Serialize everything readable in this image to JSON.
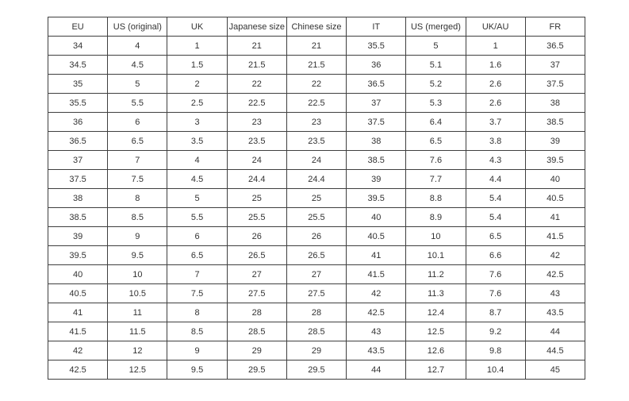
{
  "colors": {
    "background": "#ffffff",
    "border": "#3f3f3f",
    "text": "#333333"
  },
  "table": {
    "headers": [
      "EU",
      "US (original)",
      "UK",
      "Japanese size",
      "Chinese size",
      "IT",
      "US (merged)",
      "UK/AU",
      "FR"
    ],
    "rows": [
      [
        "34",
        "4",
        "1",
        "21",
        "21",
        "35.5",
        "5",
        "1",
        "36.5"
      ],
      [
        "34.5",
        "4.5",
        "1.5",
        "21.5",
        "21.5",
        "36",
        "5.1",
        "1.6",
        "37"
      ],
      [
        "35",
        "5",
        "2",
        "22",
        "22",
        "36.5",
        "5.2",
        "2.6",
        "37.5"
      ],
      [
        "35.5",
        "5.5",
        "2.5",
        "22.5",
        "22.5",
        "37",
        "5.3",
        "2.6",
        "38"
      ],
      [
        "36",
        "6",
        "3",
        "23",
        "23",
        "37.5",
        "6.4",
        "3.7",
        "38.5"
      ],
      [
        "36.5",
        "6.5",
        "3.5",
        "23.5",
        "23.5",
        "38",
        "6.5",
        "3.8",
        "39"
      ],
      [
        "37",
        "7",
        "4",
        "24",
        "24",
        "38.5",
        "7.6",
        "4.3",
        "39.5"
      ],
      [
        "37.5",
        "7.5",
        "4.5",
        "24.4",
        "24.4",
        "39",
        "7.7",
        "4.4",
        "40"
      ],
      [
        "38",
        "8",
        "5",
        "25",
        "25",
        "39.5",
        "8.8",
        "5.4",
        "40.5"
      ],
      [
        "38.5",
        "8.5",
        "5.5",
        "25.5",
        "25.5",
        "40",
        "8.9",
        "5.4",
        "41"
      ],
      [
        "39",
        "9",
        "6",
        "26",
        "26",
        "40.5",
        "10",
        "6.5",
        "41.5"
      ],
      [
        "39.5",
        "9.5",
        "6.5",
        "26.5",
        "26.5",
        "41",
        "10.1",
        "6.6",
        "42"
      ],
      [
        "40",
        "10",
        "7",
        "27",
        "27",
        "41.5",
        "11.2",
        "7.6",
        "42.5"
      ],
      [
        "40.5",
        "10.5",
        "7.5",
        "27.5",
        "27.5",
        "42",
        "11.3",
        "7.6",
        "43"
      ],
      [
        "41",
        "11",
        "8",
        "28",
        "28",
        "42.5",
        "12.4",
        "8.7",
        "43.5"
      ],
      [
        "41.5",
        "11.5",
        "8.5",
        "28.5",
        "28.5",
        "43",
        "12.5",
        "9.2",
        "44"
      ],
      [
        "42",
        "12",
        "9",
        "29",
        "29",
        "43.5",
        "12.6",
        "9.8",
        "44.5"
      ],
      [
        "42.5",
        "12.5",
        "9.5",
        "29.5",
        "29.5",
        "44",
        "12.7",
        "10.4",
        "45"
      ]
    ]
  }
}
